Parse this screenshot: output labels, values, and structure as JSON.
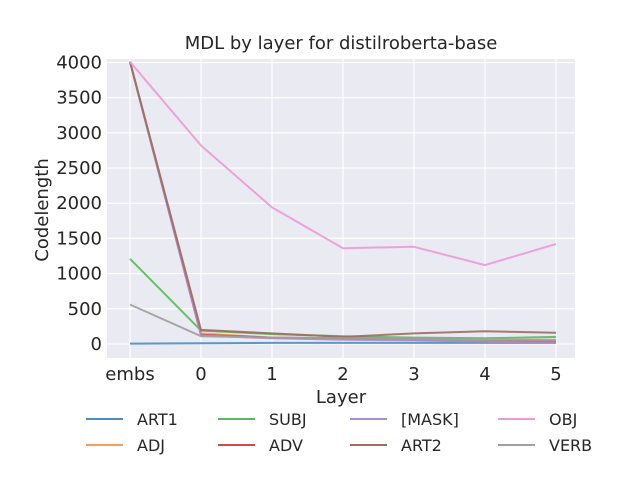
{
  "chart_data": {
    "type": "line",
    "title": "MDL by layer for distilroberta-base",
    "xlabel": "Layer",
    "ylabel": "Codelength",
    "categories": [
      "embs",
      "0",
      "1",
      "2",
      "3",
      "4",
      "5"
    ],
    "ylim": [
      -200,
      4050
    ],
    "yticks": [
      0,
      500,
      1000,
      1500,
      2000,
      2500,
      3000,
      3500,
      4000
    ],
    "grid": true,
    "legend_placement": "bottom",
    "series": [
      {
        "name": "ART1",
        "color": "#4c8dc4",
        "values": [
          5,
          10,
          15,
          15,
          15,
          15,
          15
        ]
      },
      {
        "name": "ADJ",
        "color": "#f5a05a",
        "values": [
          4010,
          150,
          90,
          70,
          60,
          40,
          40
        ]
      },
      {
        "name": "SUBJ",
        "color": "#5cb85c",
        "values": [
          1210,
          190,
          140,
          110,
          90,
          80,
          100
        ]
      },
      {
        "name": "ADV",
        "color": "#d24a4b",
        "values": [
          4010,
          130,
          90,
          80,
          60,
          40,
          30
        ]
      },
      {
        "name": "[MASK]",
        "color": "#a98dcc",
        "values": [
          4010,
          120,
          80,
          60,
          50,
          30,
          20
        ]
      },
      {
        "name": "ART2",
        "color": "#9c6e62",
        "values": [
          4010,
          200,
          150,
          100,
          150,
          180,
          160
        ]
      },
      {
        "name": "OBJ",
        "color": "#ec9ad6",
        "values": [
          4010,
          2820,
          1940,
          1360,
          1380,
          1120,
          1420
        ]
      },
      {
        "name": "VERB",
        "color": "#a0a0a0",
        "values": [
          560,
          110,
          90,
          80,
          70,
          60,
          60
        ]
      }
    ]
  }
}
